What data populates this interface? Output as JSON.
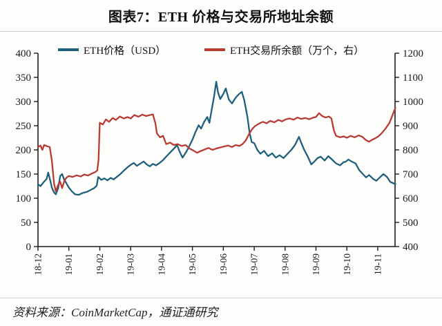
{
  "header": {
    "title": "图表7：ETH 价格与交易所地址余额"
  },
  "legend": [
    {
      "label": "ETH价格（USD）",
      "color": "#1e5f7e"
    },
    {
      "label": "ETH交易所余额（万个，右）",
      "color": "#b93a32"
    }
  ],
  "footer": {
    "source_text": "资料来源：CoinMarketCap，通证通研究"
  },
  "colors": {
    "price_line": "#1e5f7e",
    "balance_line": "#b93a32",
    "axis": "#1a1a1a"
  },
  "chart_data": {
    "type": "line",
    "title": "图表7：ETH 价格与交易所地址余额",
    "x_unit": "months since 2018-12 (tick index, 0 = 18-12)",
    "x_tick_labels": [
      "18-12",
      "19-01",
      "19-02",
      "19-03",
      "19-04",
      "19-05",
      "19-06",
      "19-07",
      "19-08",
      "19-09",
      "19-10",
      "19-11"
    ],
    "y_left": {
      "label": "ETH价格（USD）",
      "min": 0,
      "max": 400,
      "ticks": [
        0,
        50,
        100,
        150,
        200,
        250,
        300,
        350,
        400
      ]
    },
    "y_right": {
      "label": "ETH交易所余额（万个）",
      "min": 400,
      "max": 1200,
      "ticks": [
        400,
        500,
        600,
        700,
        800,
        900,
        1000,
        1100,
        1200
      ]
    },
    "grid": false,
    "legend_position": "top",
    "series": [
      {
        "name": "ETH价格（USD）",
        "axis": "left",
        "color": "#1e5f7e",
        "points": [
          [
            0,
            129
          ],
          [
            0.08,
            125
          ],
          [
            0.18,
            133
          ],
          [
            0.28,
            140
          ],
          [
            0.33,
            153
          ],
          [
            0.4,
            136
          ],
          [
            0.45,
            122
          ],
          [
            0.52,
            112
          ],
          [
            0.58,
            108
          ],
          [
            0.65,
            120
          ],
          [
            0.72,
            146
          ],
          [
            0.78,
            150
          ],
          [
            0.85,
            138
          ],
          [
            0.9,
            133
          ],
          [
            1.0,
            122
          ],
          [
            1.1,
            114
          ],
          [
            1.2,
            108
          ],
          [
            1.32,
            107
          ],
          [
            1.45,
            111
          ],
          [
            1.58,
            113
          ],
          [
            1.7,
            117
          ],
          [
            1.82,
            121
          ],
          [
            1.9,
            126
          ],
          [
            1.95,
            144
          ],
          [
            2.05,
            138
          ],
          [
            2.15,
            141
          ],
          [
            2.25,
            137
          ],
          [
            2.35,
            142
          ],
          [
            2.45,
            139
          ],
          [
            2.55,
            144
          ],
          [
            2.65,
            149
          ],
          [
            2.78,
            157
          ],
          [
            2.9,
            164
          ],
          [
            3.0,
            169
          ],
          [
            3.1,
            173
          ],
          [
            3.2,
            167
          ],
          [
            3.3,
            171
          ],
          [
            3.42,
            176
          ],
          [
            3.52,
            170
          ],
          [
            3.62,
            166
          ],
          [
            3.72,
            171
          ],
          [
            3.82,
            168
          ],
          [
            3.92,
            172
          ],
          [
            4.05,
            179
          ],
          [
            4.18,
            188
          ],
          [
            4.3,
            196
          ],
          [
            4.42,
            204
          ],
          [
            4.5,
            210
          ],
          [
            4.58,
            197
          ],
          [
            4.68,
            184
          ],
          [
            4.8,
            196
          ],
          [
            4.9,
            208
          ],
          [
            5.0,
            221
          ],
          [
            5.1,
            237
          ],
          [
            5.2,
            251
          ],
          [
            5.28,
            244
          ],
          [
            5.38,
            258
          ],
          [
            5.48,
            268
          ],
          [
            5.55,
            256
          ],
          [
            5.62,
            282
          ],
          [
            5.7,
            310
          ],
          [
            5.77,
            341
          ],
          [
            5.83,
            318
          ],
          [
            5.9,
            305
          ],
          [
            6.0,
            316
          ],
          [
            6.08,
            327
          ],
          [
            6.18,
            304
          ],
          [
            6.28,
            296
          ],
          [
            6.4,
            308
          ],
          [
            6.5,
            315
          ],
          [
            6.6,
            320
          ],
          [
            6.68,
            302
          ],
          [
            6.78,
            268
          ],
          [
            6.85,
            235
          ],
          [
            6.92,
            216
          ],
          [
            7.0,
            214
          ],
          [
            7.1,
            200
          ],
          [
            7.2,
            192
          ],
          [
            7.32,
            198
          ],
          [
            7.45,
            187
          ],
          [
            7.58,
            193
          ],
          [
            7.7,
            184
          ],
          [
            7.82,
            189
          ],
          [
            7.95,
            183
          ],
          [
            8.08,
            192
          ],
          [
            8.2,
            200
          ],
          [
            8.32,
            210
          ],
          [
            8.45,
            227
          ],
          [
            8.52,
            215
          ],
          [
            8.62,
            200
          ],
          [
            8.72,
            188
          ],
          [
            8.85,
            170
          ],
          [
            8.95,
            176
          ],
          [
            9.05,
            183
          ],
          [
            9.15,
            186
          ],
          [
            9.28,
            178
          ],
          [
            9.4,
            187
          ],
          [
            9.52,
            180
          ],
          [
            9.65,
            172
          ],
          [
            9.78,
            168
          ],
          [
            9.9,
            175
          ],
          [
            9.95,
            175
          ],
          [
            10.05,
            180
          ],
          [
            10.15,
            176
          ],
          [
            10.28,
            172
          ],
          [
            10.4,
            158
          ],
          [
            10.52,
            150
          ],
          [
            10.62,
            143
          ],
          [
            10.72,
            148
          ],
          [
            10.85,
            140
          ],
          [
            10.95,
            136
          ],
          [
            11.05,
            142
          ],
          [
            11.18,
            150
          ],
          [
            11.3,
            144
          ],
          [
            11.4,
            134
          ],
          [
            11.5,
            131
          ],
          [
            11.57,
            129
          ]
        ]
      },
      {
        "name": "ETH交易所余额（万个，右）",
        "axis": "right",
        "color": "#b93a32",
        "points": [
          [
            0,
            812
          ],
          [
            0.08,
            818
          ],
          [
            0.14,
            800
          ],
          [
            0.2,
            820
          ],
          [
            0.3,
            815
          ],
          [
            0.38,
            812
          ],
          [
            0.45,
            755
          ],
          [
            0.52,
            660
          ],
          [
            0.58,
            628
          ],
          [
            0.65,
            655
          ],
          [
            0.72,
            668
          ],
          [
            0.78,
            642
          ],
          [
            0.85,
            670
          ],
          [
            0.92,
            685
          ],
          [
            1.0,
            692
          ],
          [
            1.12,
            688
          ],
          [
            1.25,
            695
          ],
          [
            1.38,
            690
          ],
          [
            1.5,
            698
          ],
          [
            1.62,
            694
          ],
          [
            1.74,
            702
          ],
          [
            1.85,
            708
          ],
          [
            1.92,
            715
          ],
          [
            1.96,
            760
          ],
          [
            2.0,
            912
          ],
          [
            2.1,
            905
          ],
          [
            2.2,
            926
          ],
          [
            2.3,
            916
          ],
          [
            2.42,
            932
          ],
          [
            2.52,
            924
          ],
          [
            2.65,
            938
          ],
          [
            2.78,
            930
          ],
          [
            2.9,
            936
          ],
          [
            3.0,
            930
          ],
          [
            3.12,
            944
          ],
          [
            3.25,
            937
          ],
          [
            3.38,
            946
          ],
          [
            3.5,
            940
          ],
          [
            3.62,
            944
          ],
          [
            3.72,
            947
          ],
          [
            3.8,
            910
          ],
          [
            3.85,
            868
          ],
          [
            3.95,
            852
          ],
          [
            4.05,
            858
          ],
          [
            4.15,
            824
          ],
          [
            4.28,
            830
          ],
          [
            4.4,
            820
          ],
          [
            4.52,
            824
          ],
          [
            4.65,
            816
          ],
          [
            4.78,
            820
          ],
          [
            4.9,
            806
          ],
          [
            5.02,
            798
          ],
          [
            5.15,
            788
          ],
          [
            5.28,
            796
          ],
          [
            5.4,
            802
          ],
          [
            5.52,
            808
          ],
          [
            5.65,
            800
          ],
          [
            5.78,
            806
          ],
          [
            5.9,
            810
          ],
          [
            6.02,
            814
          ],
          [
            6.15,
            818
          ],
          [
            6.28,
            812
          ],
          [
            6.4,
            820
          ],
          [
            6.52,
            816
          ],
          [
            6.62,
            824
          ],
          [
            6.72,
            838
          ],
          [
            6.82,
            862
          ],
          [
            6.92,
            884
          ],
          [
            7.02,
            898
          ],
          [
            7.15,
            908
          ],
          [
            7.28,
            916
          ],
          [
            7.4,
            910
          ],
          [
            7.52,
            920
          ],
          [
            7.65,
            914
          ],
          [
            7.78,
            924
          ],
          [
            7.9,
            918
          ],
          [
            8.02,
            926
          ],
          [
            8.15,
            930
          ],
          [
            8.28,
            925
          ],
          [
            8.4,
            934
          ],
          [
            8.52,
            928
          ],
          [
            8.65,
            932
          ],
          [
            8.78,
            927
          ],
          [
            8.9,
            933
          ],
          [
            9.0,
            936
          ],
          [
            9.1,
            952
          ],
          [
            9.2,
            940
          ],
          [
            9.3,
            934
          ],
          [
            9.42,
            938
          ],
          [
            9.5,
            930
          ],
          [
            9.58,
            880
          ],
          [
            9.65,
            858
          ],
          [
            9.78,
            852
          ],
          [
            9.9,
            856
          ],
          [
            10.0,
            850
          ],
          [
            10.12,
            858
          ],
          [
            10.25,
            852
          ],
          [
            10.38,
            860
          ],
          [
            10.5,
            854
          ],
          [
            10.62,
            840
          ],
          [
            10.72,
            834
          ],
          [
            10.82,
            842
          ],
          [
            10.92,
            848
          ],
          [
            11.02,
            856
          ],
          [
            11.12,
            868
          ],
          [
            11.25,
            888
          ],
          [
            11.38,
            912
          ],
          [
            11.48,
            945
          ],
          [
            11.57,
            974
          ]
        ]
      }
    ]
  }
}
